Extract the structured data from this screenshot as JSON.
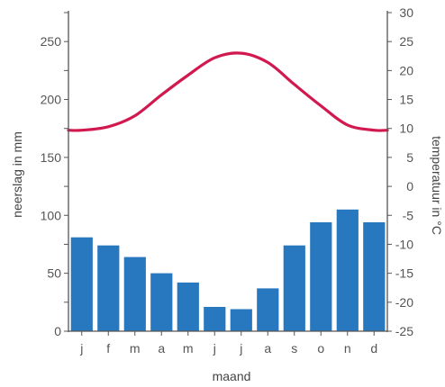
{
  "chart_data": {
    "type": "bar",
    "categories": [
      "j",
      "f",
      "m",
      "a",
      "m",
      "j",
      "j",
      "a",
      "s",
      "o",
      "n",
      "d"
    ],
    "series": [
      {
        "type": "bar",
        "axis": "left",
        "values": [
          81,
          74,
          64,
          50,
          42,
          21,
          19,
          37,
          74,
          94,
          105,
          94
        ]
      },
      {
        "type": "line",
        "axis": "right",
        "values": [
          9.7,
          10.3,
          12.2,
          15.8,
          19.2,
          22.2,
          23.0,
          21.4,
          17.6,
          13.9,
          10.6,
          9.7
        ]
      }
    ],
    "xlabel": "maand",
    "ylabel": "neerslag in mm",
    "y2label": "temperatuur in °C",
    "ylim": [
      0,
      275
    ],
    "y2lim": [
      -25,
      30
    ],
    "yticks": [
      "0",
      "50",
      "100",
      "150",
      "200",
      "250"
    ],
    "y2ticks": [
      "-25",
      "-20",
      "-15",
      "-10",
      "-5",
      "0",
      "5",
      "10",
      "15",
      "20",
      "25",
      "30"
    ],
    "grid": false,
    "colors": {
      "bars": "#2878bf",
      "line": "#d2194f",
      "axis": "#555555"
    }
  }
}
